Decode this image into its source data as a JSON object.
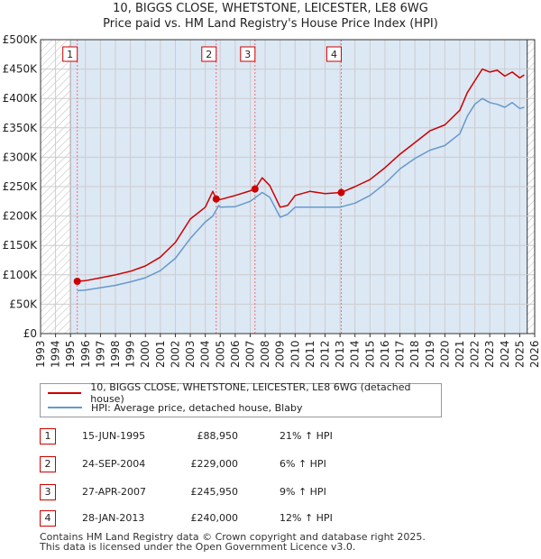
{
  "title_line1": "10, BIGGS CLOSE, WHETSTONE, LEICESTER, LE8 6WG",
  "title_line2": "Price paid vs. HM Land Registry's House Price Index (HPI)",
  "colors": {
    "property": "#cc0000",
    "hpi": "#6699cc",
    "band": "#dde8f5",
    "grid": "#cccccc",
    "marker_line": "#ff6666"
  },
  "chart_data": {
    "type": "line",
    "xlim": [
      1993,
      2026
    ],
    "ylim": [
      0,
      500000
    ],
    "y_ticks": [
      0,
      50000,
      100000,
      150000,
      200000,
      250000,
      300000,
      350000,
      400000,
      450000,
      500000
    ],
    "y_tick_labels": [
      "£0",
      "£50K",
      "£100K",
      "£150K",
      "£200K",
      "£250K",
      "£300K",
      "£350K",
      "£400K",
      "£450K",
      "£500K"
    ],
    "x_ticks": [
      1993,
      1994,
      1995,
      1996,
      1997,
      1998,
      1999,
      2000,
      2001,
      2002,
      2003,
      2004,
      2005,
      2006,
      2007,
      2008,
      2009,
      2010,
      2011,
      2012,
      2013,
      2014,
      2015,
      2016,
      2017,
      2018,
      2019,
      2020,
      2021,
      2022,
      2023,
      2024,
      2025,
      2026
    ],
    "data_window": [
      1995.0,
      2025.5
    ],
    "series": [
      {
        "name": "10, BIGGS CLOSE, WHETSTONE, LEICESTER, LE8 6WG (detached house)",
        "color": "#cc0000",
        "points": [
          [
            1995.45,
            88950
          ],
          [
            1996,
            90000
          ],
          [
            1997,
            95000
          ],
          [
            1998,
            100000
          ],
          [
            1999,
            106000
          ],
          [
            2000,
            115000
          ],
          [
            2001,
            130000
          ],
          [
            2002,
            155000
          ],
          [
            2003,
            195000
          ],
          [
            2004,
            215000
          ],
          [
            2004.5,
            242000
          ],
          [
            2004.73,
            229000
          ],
          [
            2005,
            228000
          ],
          [
            2006,
            235000
          ],
          [
            2007,
            243000
          ],
          [
            2007.32,
            245950
          ],
          [
            2007.8,
            265000
          ],
          [
            2008.3,
            252000
          ],
          [
            2009,
            215000
          ],
          [
            2009.5,
            218000
          ],
          [
            2010,
            235000
          ],
          [
            2011,
            242000
          ],
          [
            2012,
            238000
          ],
          [
            2013.08,
            240000
          ],
          [
            2014,
            250000
          ],
          [
            2015,
            262000
          ],
          [
            2016,
            282000
          ],
          [
            2017,
            305000
          ],
          [
            2018,
            325000
          ],
          [
            2019,
            345000
          ],
          [
            2020,
            355000
          ],
          [
            2021,
            380000
          ],
          [
            2021.5,
            410000
          ],
          [
            2022,
            430000
          ],
          [
            2022.5,
            450000
          ],
          [
            2023,
            445000
          ],
          [
            2023.5,
            448000
          ],
          [
            2024,
            438000
          ],
          [
            2024.5,
            445000
          ],
          [
            2025,
            435000
          ],
          [
            2025.3,
            440000
          ]
        ]
      },
      {
        "name": "HPI: Average price, detached house, Blaby",
        "color": "#6699cc",
        "points": [
          [
            1995.45,
            73000
          ],
          [
            1996,
            74000
          ],
          [
            1997,
            78000
          ],
          [
            1998,
            82000
          ],
          [
            1999,
            88000
          ],
          [
            2000,
            95000
          ],
          [
            2001,
            107000
          ],
          [
            2002,
            128000
          ],
          [
            2003,
            162000
          ],
          [
            2004,
            190000
          ],
          [
            2004.5,
            200000
          ],
          [
            2004.9,
            218000
          ],
          [
            2005,
            215000
          ],
          [
            2006,
            216000
          ],
          [
            2007,
            225000
          ],
          [
            2007.8,
            240000
          ],
          [
            2008.3,
            232000
          ],
          [
            2009,
            198000
          ],
          [
            2009.5,
            203000
          ],
          [
            2010,
            215000
          ],
          [
            2011,
            215000
          ],
          [
            2012,
            215000
          ],
          [
            2013,
            215000
          ],
          [
            2014,
            222000
          ],
          [
            2015,
            235000
          ],
          [
            2016,
            255000
          ],
          [
            2017,
            280000
          ],
          [
            2018,
            298000
          ],
          [
            2019,
            312000
          ],
          [
            2020,
            320000
          ],
          [
            2021,
            340000
          ],
          [
            2021.5,
            370000
          ],
          [
            2022,
            390000
          ],
          [
            2022.5,
            400000
          ],
          [
            2023,
            393000
          ],
          [
            2023.5,
            390000
          ],
          [
            2024,
            385000
          ],
          [
            2024.5,
            393000
          ],
          [
            2025,
            383000
          ],
          [
            2025.3,
            385000
          ]
        ]
      }
    ],
    "sale_markers": [
      {
        "label": "1",
        "x": 1995.45,
        "y": 88950
      },
      {
        "label": "2",
        "x": 2004.73,
        "y": 229000
      },
      {
        "label": "3",
        "x": 2007.32,
        "y": 245950
      },
      {
        "label": "4",
        "x": 2013.08,
        "y": 240000
      }
    ]
  },
  "legend": {
    "property": "10, BIGGS CLOSE, WHETSTONE, LEICESTER, LE8 6WG (detached house)",
    "hpi": "HPI: Average price, detached house, Blaby"
  },
  "sales": [
    {
      "num": "1",
      "date": "15-JUN-1995",
      "price": "£88,950",
      "hpi": "21% ↑ HPI"
    },
    {
      "num": "2",
      "date": "24-SEP-2004",
      "price": "£229,000",
      "hpi": "6% ↑ HPI"
    },
    {
      "num": "3",
      "date": "27-APR-2007",
      "price": "£245,950",
      "hpi": "9% ↑ HPI"
    },
    {
      "num": "4",
      "date": "28-JAN-2013",
      "price": "£240,000",
      "hpi": "12% ↑ HPI"
    }
  ],
  "footer_line1": "Contains HM Land Registry data © Crown copyright and database right 2025.",
  "footer_line2": "This data is licensed under the Open Government Licence v3.0."
}
